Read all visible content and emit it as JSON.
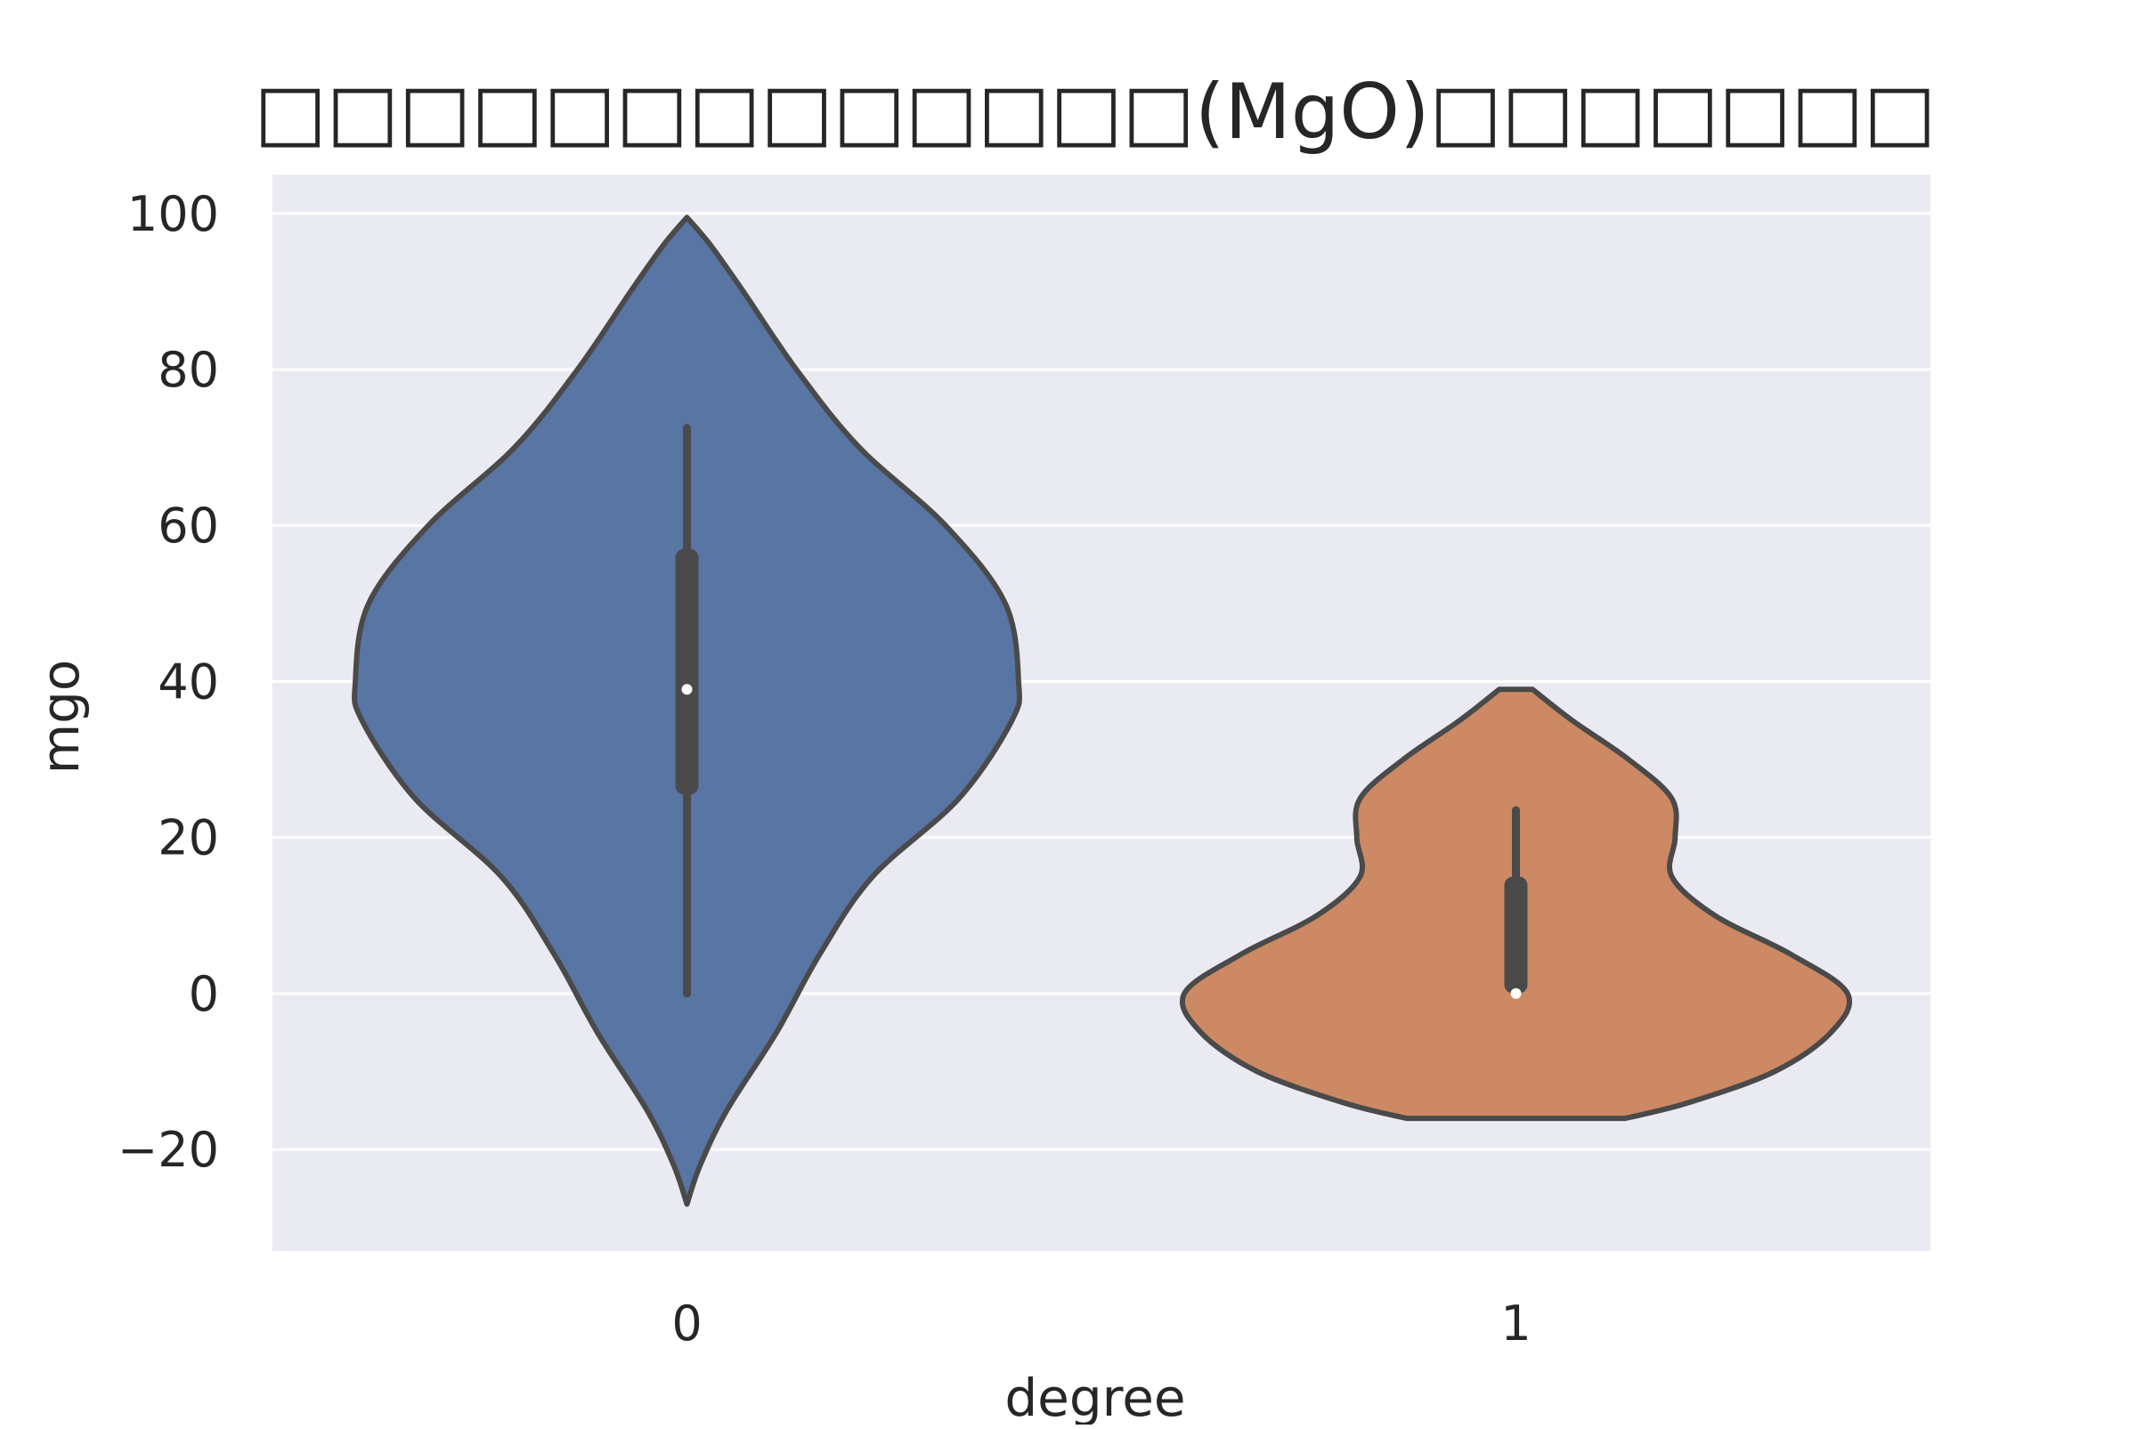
{
  "chart_data": {
    "type": "violin",
    "title": "□□□□□□□□□□□□□(MgO)□□□□□□□",
    "xlabel": "degree",
    "ylabel": "mgo",
    "categories": [
      "0",
      "1"
    ],
    "y_ticks": [
      "100",
      "80",
      "60",
      "40",
      "20",
      "0",
      "−20"
    ],
    "ylim": [
      -33,
      105
    ],
    "grid": true,
    "legend": "none",
    "colors": {
      "background": "#eaeaf2",
      "grid": "#ffffff",
      "outline": "#4a4a4a",
      "series": [
        "#5975a4",
        "#cc8963"
      ]
    },
    "violins": [
      {
        "category": "0",
        "color": "#5975a4",
        "min": 0,
        "q1": 25.5,
        "median": 39,
        "q3": 57,
        "max": 72.5,
        "density_min": -27,
        "density_max": 99.5,
        "profile": [
          {
            "y": -27,
            "w": 0.0
          },
          {
            "y": -22,
            "w": 0.04
          },
          {
            "y": -15,
            "w": 0.12
          },
          {
            "y": -5,
            "w": 0.27
          },
          {
            "y": 5,
            "w": 0.4
          },
          {
            "y": 15,
            "w": 0.56
          },
          {
            "y": 25,
            "w": 0.82
          },
          {
            "y": 35,
            "w": 0.98
          },
          {
            "y": 40,
            "w": 1.0
          },
          {
            "y": 50,
            "w": 0.96
          },
          {
            "y": 60,
            "w": 0.78
          },
          {
            "y": 70,
            "w": 0.52
          },
          {
            "y": 80,
            "w": 0.33
          },
          {
            "y": 90,
            "w": 0.17
          },
          {
            "y": 96,
            "w": 0.07
          },
          {
            "y": 99.5,
            "w": 0.0
          }
        ]
      },
      {
        "category": "1",
        "color": "#cc8963",
        "min": 0,
        "q1": 0,
        "median": 0,
        "q3": 15,
        "max": 23.5,
        "density_min": -16,
        "density_max": 39,
        "profile": [
          {
            "y": -16,
            "w": 0.33
          },
          {
            "y": -14,
            "w": 0.52
          },
          {
            "y": -10,
            "w": 0.78
          },
          {
            "y": -5,
            "w": 0.95
          },
          {
            "y": 0,
            "w": 1.0
          },
          {
            "y": 5,
            "w": 0.83
          },
          {
            "y": 10,
            "w": 0.6
          },
          {
            "y": 15,
            "w": 0.47
          },
          {
            "y": 20,
            "w": 0.48
          },
          {
            "y": 25,
            "w": 0.47
          },
          {
            "y": 30,
            "w": 0.34
          },
          {
            "y": 35,
            "w": 0.17
          },
          {
            "y": 39,
            "w": 0.05
          }
        ]
      }
    ]
  }
}
